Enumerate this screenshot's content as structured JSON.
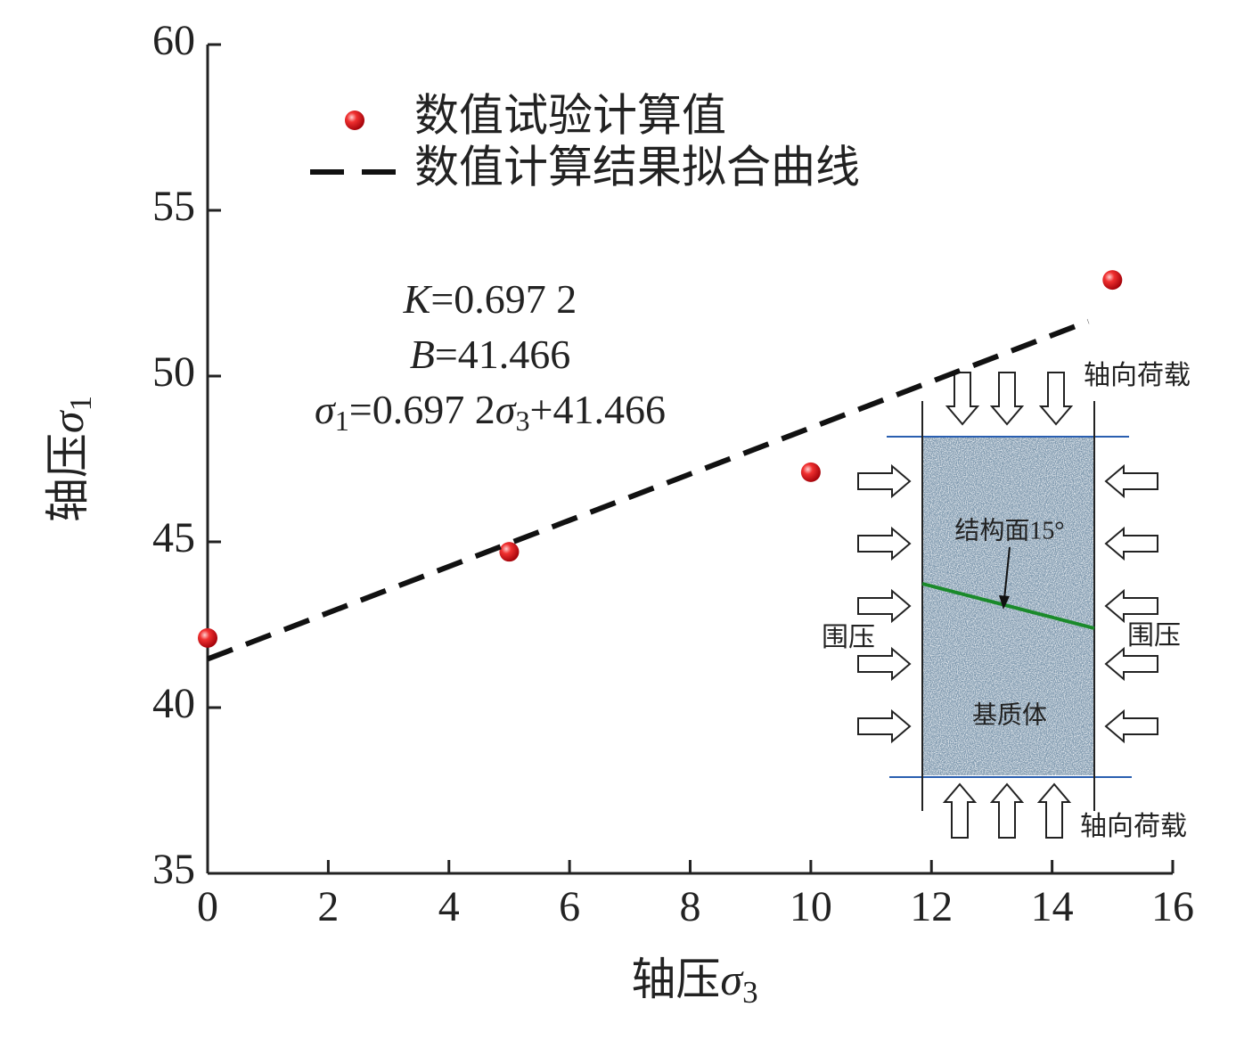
{
  "chart_data": {
    "type": "scatter",
    "xlim": [
      0,
      16
    ],
    "ylim": [
      35,
      60
    ],
    "xticks": [
      0,
      2,
      4,
      6,
      8,
      10,
      12,
      14,
      16
    ],
    "yticks": [
      35,
      40,
      45,
      50,
      55,
      60
    ],
    "xlabel": [
      {
        "text": "轴压"
      },
      {
        "text": "σ",
        "style": "italic"
      },
      {
        "text": "3",
        "style": "sub"
      }
    ],
    "ylabel": [
      {
        "text": "轴压"
      },
      {
        "text": "σ",
        "style": "italic"
      },
      {
        "text": "1",
        "style": "sub"
      }
    ],
    "legend": "upper-left",
    "series": [
      {
        "name": "数值试验计算值",
        "type": "scatter",
        "color": "#e8141c",
        "x": [
          0,
          5,
          10,
          15
        ],
        "values": [
          42.1,
          44.7,
          47.1,
          52.9
        ]
      },
      {
        "name": "数值计算结果拟合曲线",
        "type": "line",
        "style": "dashed",
        "color": "#111111",
        "x": [
          0,
          14.6
        ],
        "values": [
          41.466,
          51.65
        ]
      }
    ],
    "annotations": [
      [
        {
          "text": "K",
          "style": "italic"
        },
        {
          "text": "=0.697 2"
        }
      ],
      [
        {
          "text": "B",
          "style": "italic"
        },
        {
          "text": "=41.466"
        }
      ],
      [
        {
          "text": "σ",
          "style": "italic"
        },
        {
          "text": "1",
          "style": "sub"
        },
        {
          "text": "=0.697 2"
        },
        {
          "text": "σ",
          "style": "italic"
        },
        {
          "text": "3",
          "style": "sub"
        },
        {
          "text": "+41.466"
        }
      ]
    ],
    "inset": {
      "axial_load": [
        "轴向荷载",
        "轴向荷载"
      ],
      "confining": [
        "围压",
        "围压"
      ],
      "plane_label": "结构面15°",
      "matrix_label": "基质体"
    }
  }
}
